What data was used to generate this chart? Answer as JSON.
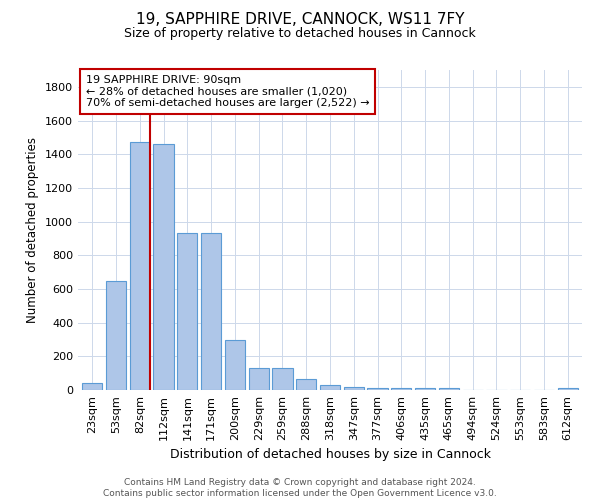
{
  "title_line1": "19, SAPPHIRE DRIVE, CANNOCK, WS11 7FY",
  "title_line2": "Size of property relative to detached houses in Cannock",
  "xlabel": "Distribution of detached houses by size in Cannock",
  "ylabel": "Number of detached properties",
  "bar_color": "#aec6e8",
  "bar_edge_color": "#5b9bd5",
  "categories": [
    "23sqm",
    "53sqm",
    "82sqm",
    "112sqm",
    "141sqm",
    "171sqm",
    "200sqm",
    "229sqm",
    "259sqm",
    "288sqm",
    "318sqm",
    "347sqm",
    "377sqm",
    "406sqm",
    "435sqm",
    "465sqm",
    "494sqm",
    "524sqm",
    "553sqm",
    "583sqm",
    "612sqm"
  ],
  "values": [
    40,
    650,
    1470,
    1460,
    935,
    930,
    295,
    130,
    130,
    65,
    30,
    20,
    10,
    10,
    10,
    10,
    0,
    0,
    0,
    0,
    10
  ],
  "vline_color": "#c00000",
  "annotation_text": "19 SAPPHIRE DRIVE: 90sqm\n← 28% of detached houses are smaller (1,020)\n70% of semi-detached houses are larger (2,522) →",
  "annotation_box_color": "#ffffff",
  "annotation_box_edge": "#c00000",
  "ylim": [
    0,
    1900
  ],
  "yticks": [
    0,
    200,
    400,
    600,
    800,
    1000,
    1200,
    1400,
    1600,
    1800
  ],
  "footer_line1": "Contains HM Land Registry data © Crown copyright and database right 2024.",
  "footer_line2": "Contains public sector information licensed under the Open Government Licence v3.0.",
  "background_color": "#ffffff",
  "grid_color": "#cdd8ea",
  "title_fontsize": 11,
  "subtitle_fontsize": 9,
  "ylabel_fontsize": 8.5,
  "xlabel_fontsize": 9,
  "tick_fontsize": 8,
  "annotation_fontsize": 8,
  "footer_fontsize": 6.5
}
